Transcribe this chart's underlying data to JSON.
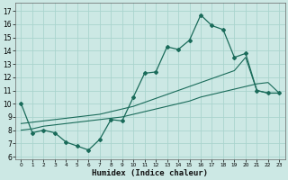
{
  "xlabel": "Humidex (Indice chaleur)",
  "background_color": "#cce8e4",
  "grid_color": "#aad4ce",
  "line_color": "#1a6b5a",
  "xlim": [
    -0.5,
    23.5
  ],
  "ylim": [
    5.8,
    17.6
  ],
  "xticks": [
    0,
    1,
    2,
    3,
    4,
    5,
    6,
    7,
    8,
    9,
    10,
    11,
    12,
    13,
    14,
    15,
    16,
    17,
    18,
    19,
    20,
    21,
    22,
    23
  ],
  "yticks": [
    6,
    7,
    8,
    9,
    10,
    11,
    12,
    13,
    14,
    15,
    16,
    17
  ],
  "main_line_x": [
    0,
    1,
    2,
    3,
    4,
    5,
    6,
    7,
    8,
    9,
    10,
    11,
    12,
    13,
    14,
    15,
    16,
    17,
    18,
    19,
    20,
    21,
    22,
    23
  ],
  "main_line_y": [
    10.0,
    7.8,
    8.0,
    7.8,
    7.1,
    6.8,
    6.5,
    7.3,
    8.8,
    8.7,
    10.5,
    12.3,
    12.4,
    14.3,
    14.1,
    14.8,
    16.7,
    15.9,
    15.6,
    13.5,
    13.8,
    11.0,
    10.8,
    10.8
  ],
  "reg_line1_y": [
    8.0,
    8.1,
    8.3,
    8.4,
    8.5,
    8.6,
    8.7,
    8.8,
    8.9,
    9.0,
    9.2,
    9.4,
    9.6,
    9.8,
    10.0,
    10.2,
    10.5,
    10.7,
    10.9,
    11.1,
    11.3,
    11.5,
    11.6,
    10.8
  ],
  "reg_line2_y": [
    8.5,
    8.6,
    8.7,
    8.8,
    8.9,
    9.0,
    9.1,
    9.2,
    9.4,
    9.6,
    9.8,
    10.1,
    10.4,
    10.7,
    11.0,
    11.3,
    11.6,
    11.9,
    12.2,
    12.5,
    13.5,
    11.0,
    10.8,
    10.8
  ]
}
